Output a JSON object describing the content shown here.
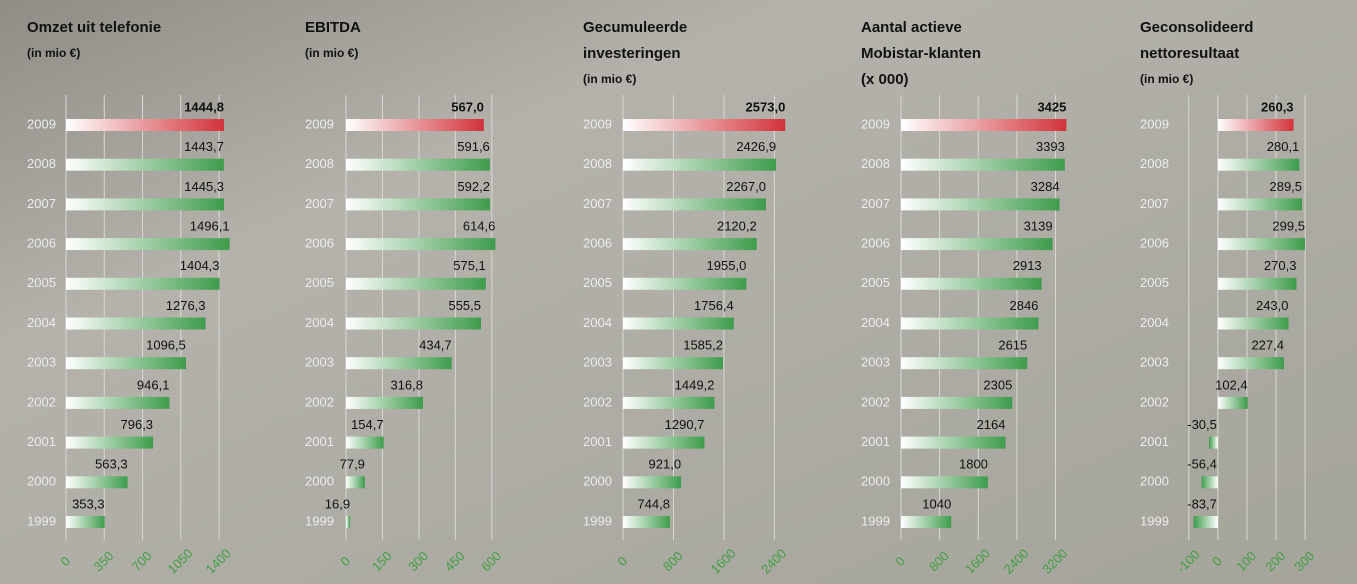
{
  "chart_data": [
    {
      "type": "bar",
      "orientation": "horizontal",
      "title": [
        "Omzet uit telefonie"
      ],
      "subtitle": "(in mio €)",
      "categories": [
        "2009",
        "2008",
        "2007",
        "2006",
        "2005",
        "2004",
        "2003",
        "2002",
        "2001",
        "2000",
        "1999"
      ],
      "values": [
        1444.8,
        1443.7,
        1445.3,
        1496.1,
        1404.3,
        1276.3,
        1096.5,
        946.1,
        796.3,
        563.3,
        353.3
      ],
      "value_labels": [
        "1444,8",
        "1443,7",
        "1445,3",
        "1496,1",
        "1404,3",
        "1276,3",
        "1096,5",
        "946,1",
        "796,3",
        "563,3",
        "353,3"
      ],
      "colors": [
        "#d2323a",
        "#3e9c4c",
        "#3e9c4c",
        "#3e9c4c",
        "#3e9c4c",
        "#3e9c4c",
        "#3e9c4c",
        "#3e9c4c",
        "#3e9c4c",
        "#3e9c4c",
        "#3e9c4c"
      ],
      "xlim": [
        0,
        1500
      ],
      "xticks": [
        0,
        350,
        700,
        1050,
        1400
      ],
      "grid": true
    },
    {
      "type": "bar",
      "orientation": "horizontal",
      "title": [
        "EBITDA"
      ],
      "subtitle": "(in mio €)",
      "categories": [
        "2009",
        "2008",
        "2007",
        "2006",
        "2005",
        "2004",
        "2003",
        "2002",
        "2001",
        "2000",
        "1999"
      ],
      "values": [
        567.0,
        591.6,
        592.2,
        614.6,
        575.1,
        555.5,
        434.7,
        316.8,
        154.7,
        77.9,
        16.9
      ],
      "value_labels": [
        "567,0",
        "591,6",
        "592,2",
        "614,6",
        "575,1",
        "555,5",
        "434,7",
        "316,8",
        "154,7",
        "77,9",
        "16,9"
      ],
      "colors": [
        "#d2323a",
        "#3e9c4c",
        "#3e9c4c",
        "#3e9c4c",
        "#3e9c4c",
        "#3e9c4c",
        "#3e9c4c",
        "#3e9c4c",
        "#3e9c4c",
        "#3e9c4c",
        "#3e9c4c"
      ],
      "xlim": [
        0,
        650
      ],
      "xticks": [
        0,
        150,
        300,
        450,
        600
      ],
      "grid": true
    },
    {
      "type": "bar",
      "orientation": "horizontal",
      "title": [
        "Gecumuleerde",
        "investeringen"
      ],
      "subtitle": "(in mio €)",
      "categories": [
        "2009",
        "2008",
        "2007",
        "2006",
        "2005",
        "2004",
        "2003",
        "2002",
        "2001",
        "2000",
        "1999"
      ],
      "values": [
        2573.0,
        2426.9,
        2267.0,
        2120.2,
        1955.0,
        1756.4,
        1585.2,
        1449.2,
        1290.7,
        921.0,
        744.8
      ],
      "value_labels": [
        "2573,0",
        "2426,9",
        "2267,0",
        "2120,2",
        "1955,0",
        "1756,4",
        "1585,2",
        "1449,2",
        "1290,7",
        "921,0",
        "744,8"
      ],
      "colors": [
        "#d2323a",
        "#3e9c4c",
        "#3e9c4c",
        "#3e9c4c",
        "#3e9c4c",
        "#3e9c4c",
        "#3e9c4c",
        "#3e9c4c",
        "#3e9c4c",
        "#3e9c4c",
        "#3e9c4c"
      ],
      "xlim": [
        0,
        2600
      ],
      "xticks": [
        0,
        800,
        1600,
        2400
      ],
      "grid": true
    },
    {
      "type": "bar",
      "orientation": "horizontal",
      "title": [
        "Aantal actieve",
        "Mobistar-klanten"
      ],
      "subtitle": "(x 000)",
      "categories": [
        "2009",
        "2008",
        "2007",
        "2006",
        "2005",
        "2004",
        "2003",
        "2002",
        "2001",
        "2000",
        "1999"
      ],
      "values": [
        3425,
        3393,
        3284,
        3139,
        2913,
        2846,
        2615,
        2305,
        2164,
        1800,
        1040
      ],
      "colors": [
        "#d2323a",
        "#3e9c4c",
        "#3e9c4c",
        "#3e9c4c",
        "#3e9c4c",
        "#3e9c4c",
        "#3e9c4c",
        "#3e9c4c",
        "#3e9c4c",
        "#3e9c4c",
        "#3e9c4c"
      ],
      "xlim": [
        0,
        3500
      ],
      "xticks": [
        0,
        800,
        1600,
        2400,
        3200
      ],
      "grid": true
    },
    {
      "type": "bar",
      "orientation": "horizontal",
      "title": [
        "Geconsolideerd",
        "nettoresultaat"
      ],
      "subtitle": "(in mio €)",
      "categories": [
        "2009",
        "2008",
        "2007",
        "2006",
        "2005",
        "2004",
        "2003",
        "2002",
        "2001",
        "2000",
        "1999"
      ],
      "values": [
        260.3,
        280.1,
        289.5,
        299.5,
        270.3,
        243.0,
        227.4,
        102.4,
        -30.5,
        -56.4,
        -83.7
      ],
      "value_labels": [
        "260,3",
        "280,1",
        "289,5",
        "299,5",
        "270,3",
        "243,0",
        "227,4",
        "102,4",
        "-30,5",
        "-56,4",
        "-83,7"
      ],
      "colors": [
        "#d2323a",
        "#3e9c4c",
        "#3e9c4c",
        "#3e9c4c",
        "#3e9c4c",
        "#3e9c4c",
        "#3e9c4c",
        "#3e9c4c",
        "#3e9c4c",
        "#3e9c4c",
        "#3e9c4c"
      ],
      "xlim": [
        -120,
        310
      ],
      "xticks": [
        -100,
        0,
        100,
        200,
        300
      ],
      "grid": true
    }
  ]
}
